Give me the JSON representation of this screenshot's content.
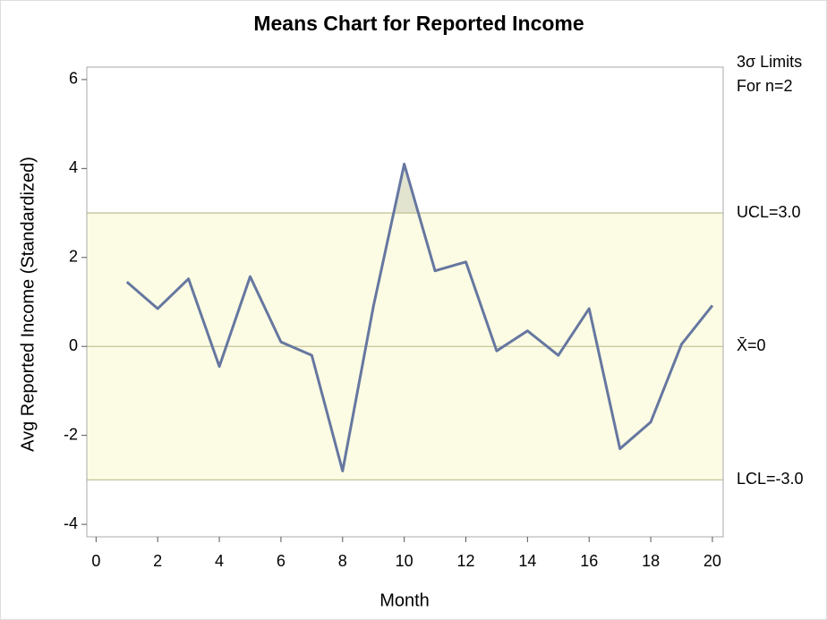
{
  "chart_data": {
    "type": "line",
    "title": "Means Chart for Reported Income",
    "x_label": "Month",
    "y_label": "Avg Reported Income (Standardized)",
    "annotations": [
      "3σ Limits",
      "For n=2"
    ],
    "x": [
      1,
      2,
      3,
      4,
      5,
      6,
      7,
      8,
      9,
      10,
      11,
      12,
      13,
      14,
      15,
      16,
      17,
      18,
      19,
      20
    ],
    "values": [
      1.45,
      0.85,
      1.52,
      -0.45,
      1.57,
      0.1,
      -0.2,
      -2.8,
      0.9,
      4.1,
      1.7,
      1.9,
      -0.1,
      0.35,
      -0.2,
      0.85,
      -2.3,
      -1.7,
      0.05,
      0.92
    ],
    "color": "#6677a0",
    "limits": {
      "ucl": 3,
      "center": 0,
      "lcl": -3,
      "ucl_label": "UCL=3.0",
      "center_label": "X̄=0",
      "lcl_label": "LCL=-3.0"
    },
    "band_color": "#fcfce4",
    "exceed_color": "#e2e4d0",
    "xlim": [
      -0.3,
      20.35
    ],
    "xticks": [
      0,
      2,
      4,
      6,
      8,
      10,
      12,
      14,
      16,
      18,
      20
    ],
    "ylim": [
      -4.28,
      6.28
    ],
    "yticks": [
      -4,
      -2,
      0,
      2,
      4,
      6
    ]
  }
}
